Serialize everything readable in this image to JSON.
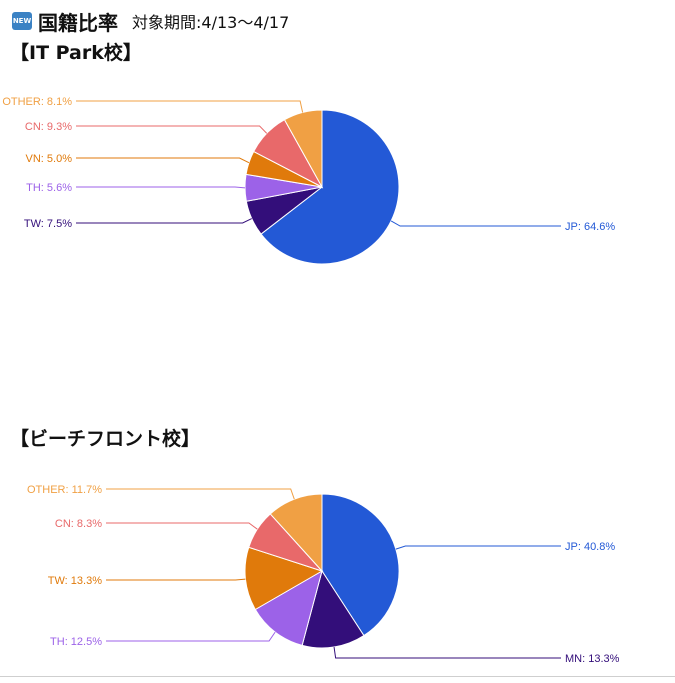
{
  "header": {
    "badge": "NEW",
    "title": "国籍比率",
    "period": "対象期間:4/13〜4/17"
  },
  "chart_data": [
    {
      "type": "pie",
      "title": "【IT Park校】",
      "slices": [
        {
          "label": "JP",
          "value": 64.6,
          "color": "#2359d6"
        },
        {
          "label": "TW",
          "value": 7.5,
          "color": "#330e7a"
        },
        {
          "label": "TH",
          "value": 5.6,
          "color": "#9c62e8"
        },
        {
          "label": "VN",
          "value": 5.0,
          "color": "#e07a0b"
        },
        {
          "label": "CN",
          "value": 9.3,
          "color": "#e8696a"
        },
        {
          "label": "OTHER",
          "value": 8.1,
          "color": "#f0a044"
        }
      ]
    },
    {
      "type": "pie",
      "title": "【ビーチフロント校】",
      "slices": [
        {
          "label": "JP",
          "value": 40.8,
          "color": "#2359d6"
        },
        {
          "label": "MN",
          "value": 13.3,
          "color": "#330e7a"
        },
        {
          "label": "TH",
          "value": 12.5,
          "color": "#9c62e8"
        },
        {
          "label": "TW",
          "value": 13.3,
          "color": "#e07a0b"
        },
        {
          "label": "CN",
          "value": 8.3,
          "color": "#e8696a"
        },
        {
          "label": "OTHER",
          "value": 11.7,
          "color": "#f0a044"
        }
      ]
    }
  ]
}
